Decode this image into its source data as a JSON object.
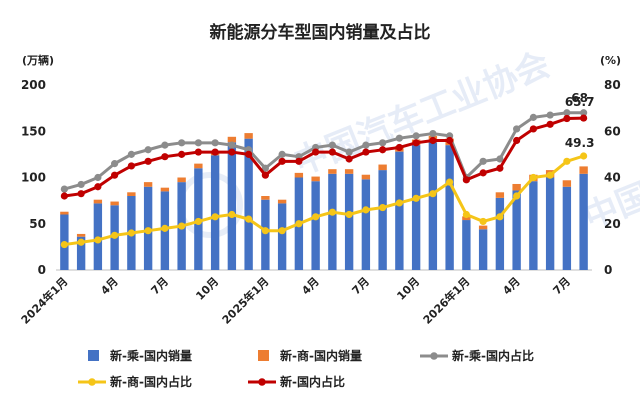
{
  "chart_data": {
    "type": "bar",
    "title": "新能源分车型国内销量及占比",
    "y_left_unit": "(万辆)",
    "y_right_unit": "(%)",
    "ylim_left": [
      0,
      200
    ],
    "ylim_right": [
      0,
      80
    ],
    "y_left_ticks": [
      "0",
      "50",
      "100",
      "150",
      "200"
    ],
    "y_right_ticks": [
      "0",
      "20",
      "40",
      "60",
      "80"
    ],
    "x_tick_labels": [
      {
        "index": 0,
        "label": "2024年1月"
      },
      {
        "index": 3,
        "label": "4月"
      },
      {
        "index": 6,
        "label": "7月"
      },
      {
        "index": 9,
        "label": "10月"
      },
      {
        "index": 12,
        "label": "2025年1月"
      },
      {
        "index": 15,
        "label": "4月"
      },
      {
        "index": 18,
        "label": "7月"
      },
      {
        "index": 21,
        "label": "10月"
      },
      {
        "index": 24,
        "label": "2026年1月"
      },
      {
        "index": 27,
        "label": "4月"
      },
      {
        "index": 30,
        "label": "7月"
      }
    ],
    "grid": false,
    "legend_position": "bottom",
    "series": [
      {
        "name": "新-乘-国内销量",
        "type": "bar",
        "axis": "left",
        "color": "#4472C4",
        "values": [
          60,
          36,
          72,
          70,
          80,
          90,
          85,
          95,
          110,
          124,
          138,
          142,
          76,
          72,
          100,
          96,
          104,
          104,
          98,
          108,
          128,
          135,
          138,
          135,
          54,
          44,
          78,
          86,
          96,
          100,
          90,
          104
        ]
      },
      {
        "name": "新-商-国内销量",
        "type": "bar",
        "axis": "left",
        "color": "#ED7D31",
        "values": [
          3,
          3,
          4,
          4,
          4,
          5,
          4,
          5,
          5,
          5,
          6,
          6,
          4,
          4,
          5,
          5,
          5,
          5,
          5,
          6,
          6,
          6,
          7,
          7,
          4,
          4,
          6,
          7,
          7,
          8,
          7,
          8
        ]
      },
      {
        "name": "新-乘-国内占比",
        "type": "line",
        "axis": "right",
        "color": "#8C8C8C",
        "values": [
          35,
          37,
          40,
          46,
          50,
          52,
          54,
          55,
          55,
          55,
          54,
          52,
          44,
          50,
          49,
          53,
          54,
          51,
          54,
          55,
          57,
          58,
          59,
          58,
          40,
          47,
          48,
          61,
          66,
          67,
          68,
          68
        ]
      },
      {
        "name": "新-商-国内占比",
        "type": "line",
        "axis": "right",
        "color": "#F5C518",
        "values": [
          11,
          12,
          13,
          15,
          16,
          17,
          18,
          19,
          21,
          23,
          24,
          22,
          17,
          17,
          20,
          23,
          25,
          24,
          26,
          27,
          29,
          31,
          33,
          38,
          24,
          21,
          23,
          32,
          40,
          41,
          47,
          49.3
        ]
      },
      {
        "name": "新-国内占比",
        "type": "line",
        "axis": "right",
        "color": "#C00000",
        "values": [
          32,
          33,
          36,
          41,
          45,
          47,
          49,
          50,
          51,
          51,
          51,
          50,
          41,
          47,
          47,
          51,
          51,
          48,
          51,
          52,
          53,
          55,
          56,
          56,
          39,
          42,
          44,
          56,
          61,
          63,
          65.5,
          65.7
        ]
      }
    ],
    "annotations": [
      {
        "series": "新-乘-国内占比",
        "index": 31,
        "label": "68"
      },
      {
        "series": "新-国内占比",
        "index": 31,
        "label": "65.7"
      },
      {
        "series": "新-商-国内占比",
        "index": 31,
        "label": "49.3"
      }
    ]
  }
}
